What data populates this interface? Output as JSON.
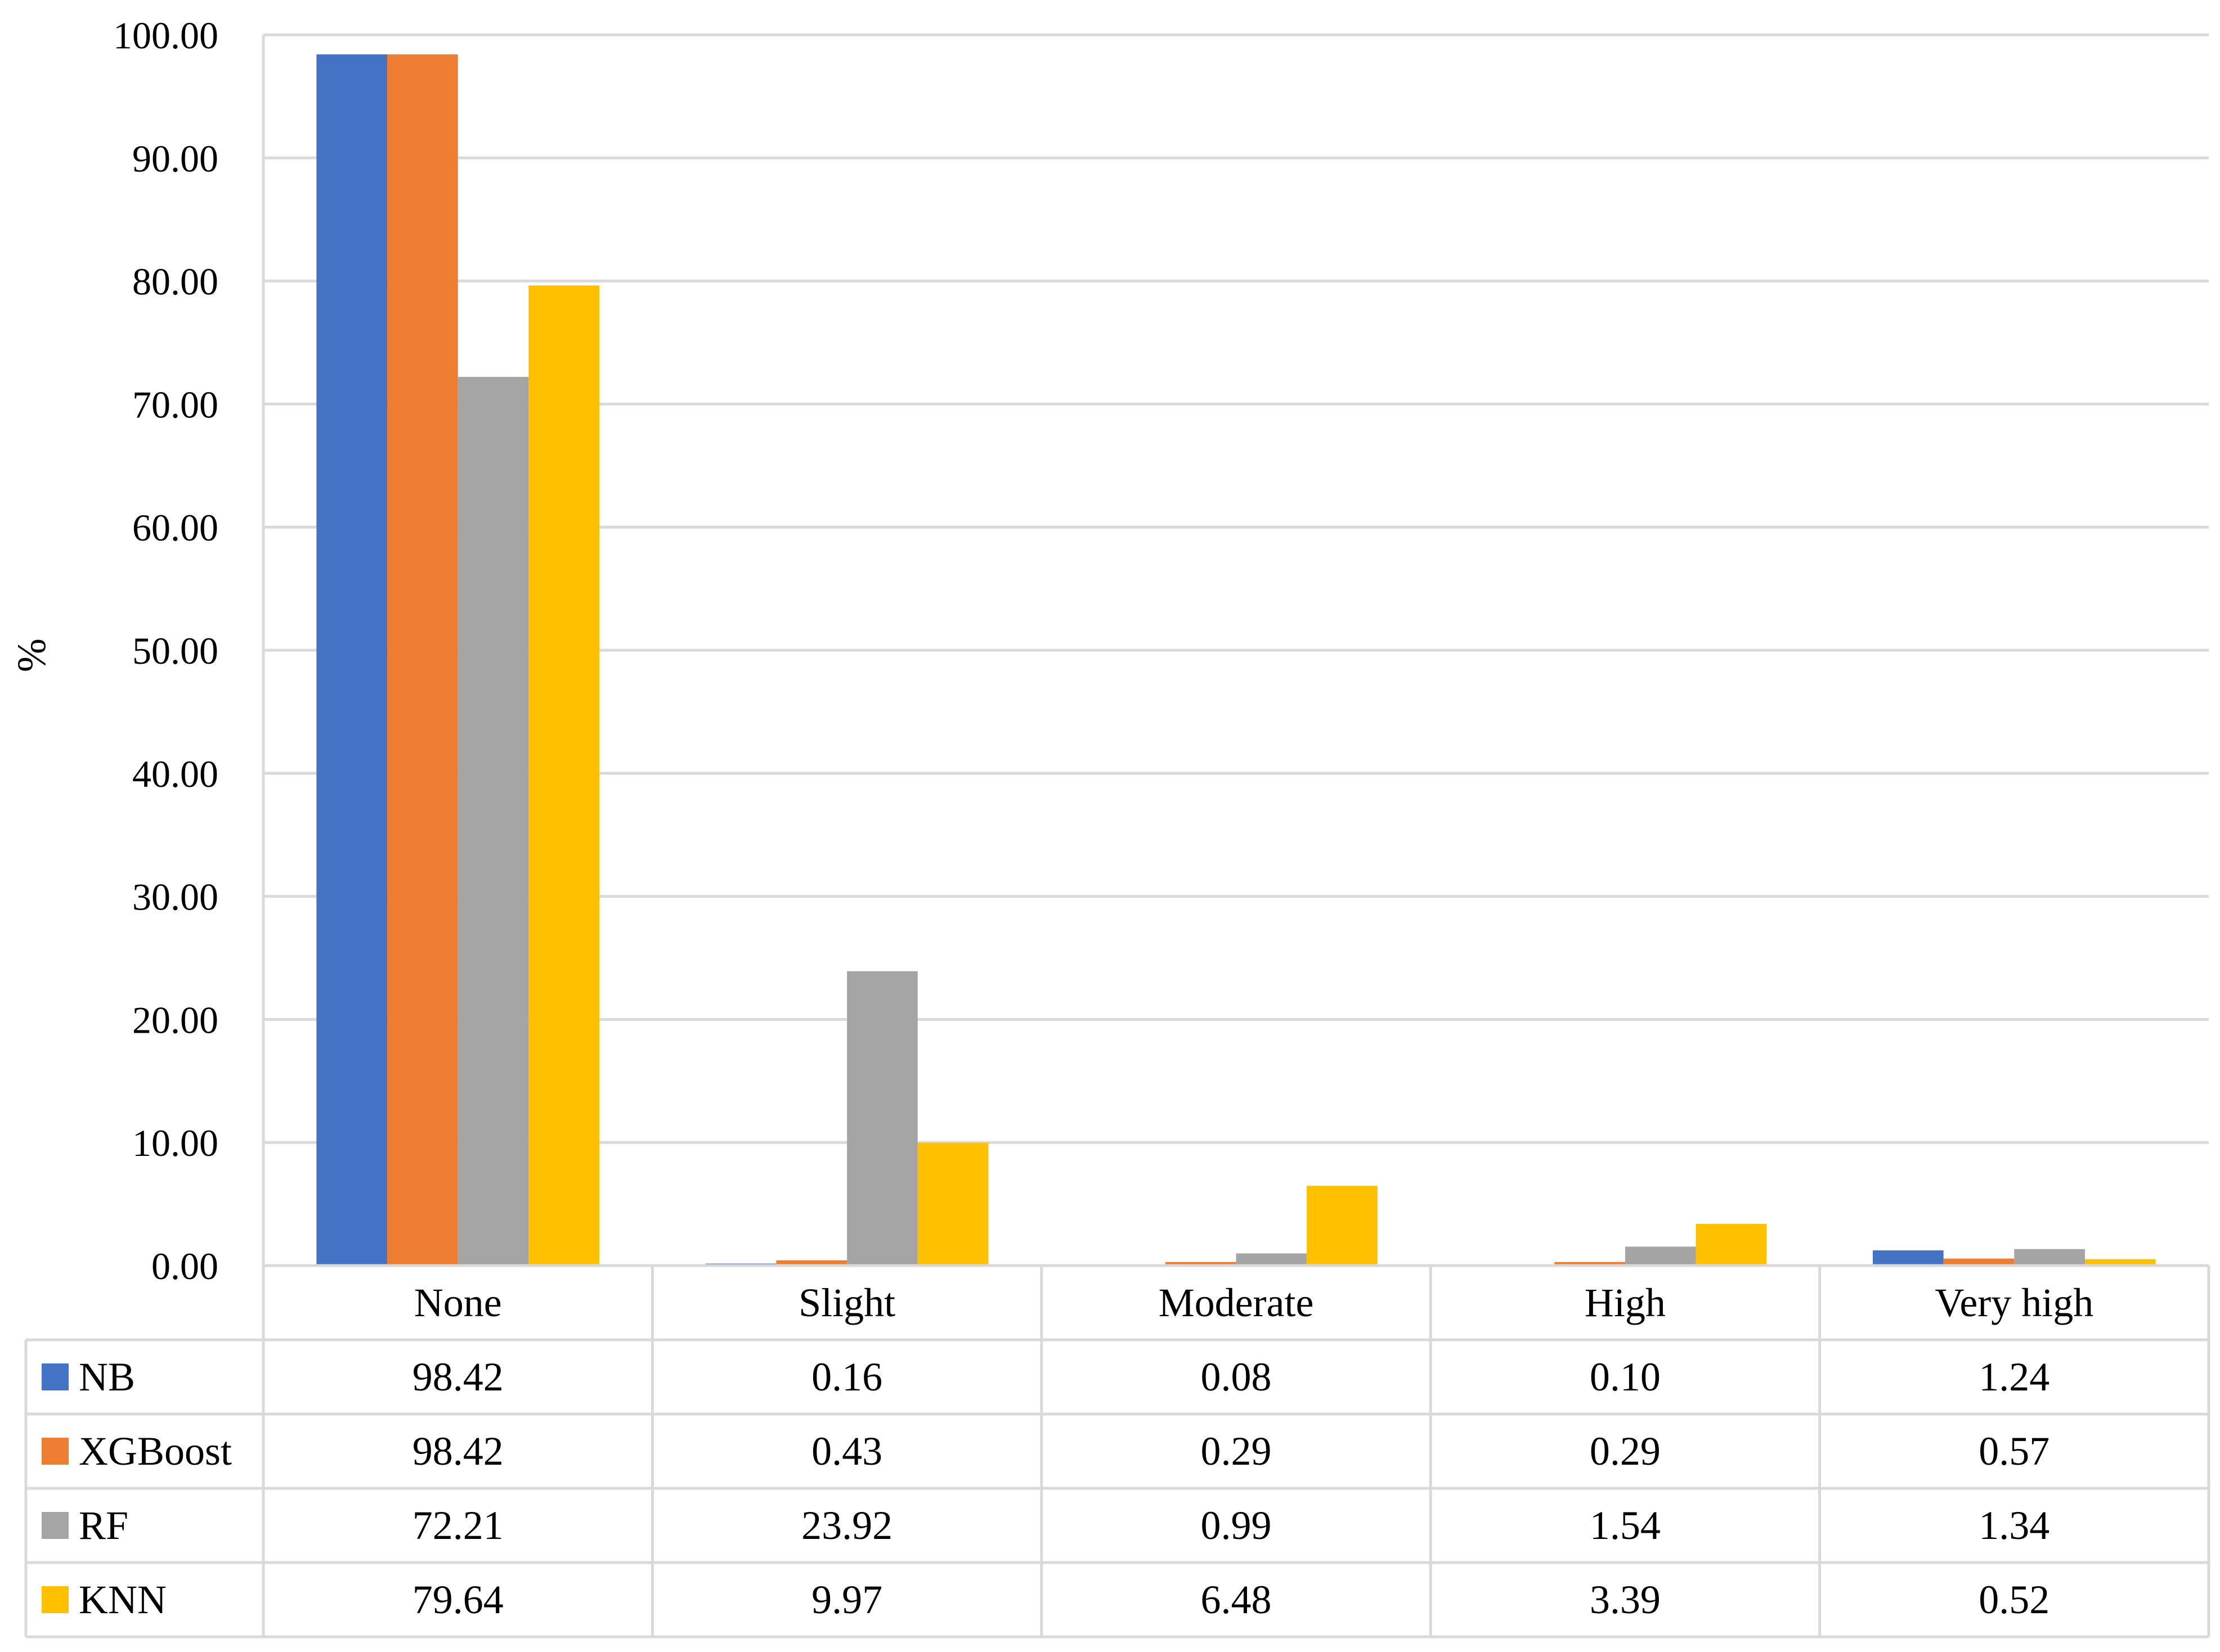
{
  "chart_data": {
    "type": "bar",
    "title": "",
    "xlabel": "",
    "ylabel": "%",
    "ylim": [
      0,
      100
    ],
    "yticks": [
      "0.00",
      "10.00",
      "20.00",
      "30.00",
      "40.00",
      "50.00",
      "60.00",
      "70.00",
      "80.00",
      "90.00",
      "100.00"
    ],
    "categories": [
      "None",
      "Slight",
      "Moderate",
      "High",
      "Very high"
    ],
    "grid": true,
    "legend": "data-table",
    "series": [
      {
        "name": "NB",
        "color": "#4472C4",
        "values": [
          98.42,
          0.16,
          0.08,
          0.1,
          1.24
        ],
        "labels": [
          "98.42",
          "0.16",
          "0.08",
          "0.10",
          "1.24"
        ]
      },
      {
        "name": "XGBoost",
        "color": "#ED7D31",
        "values": [
          98.42,
          0.43,
          0.29,
          0.29,
          0.57
        ],
        "labels": [
          "98.42",
          "0.43",
          "0.29",
          "0.29",
          "0.57"
        ]
      },
      {
        "name": "RF",
        "color": "#A5A5A5",
        "values": [
          72.21,
          23.92,
          0.99,
          1.54,
          1.34
        ],
        "labels": [
          "72.21",
          "23.92",
          "0.99",
          "1.54",
          "1.34"
        ]
      },
      {
        "name": "KNN",
        "color": "#FFC000",
        "values": [
          79.64,
          9.97,
          6.48,
          3.39,
          0.52
        ],
        "labels": [
          "79.64",
          "9.97",
          "6.48",
          "3.39",
          "0.52"
        ]
      }
    ]
  }
}
